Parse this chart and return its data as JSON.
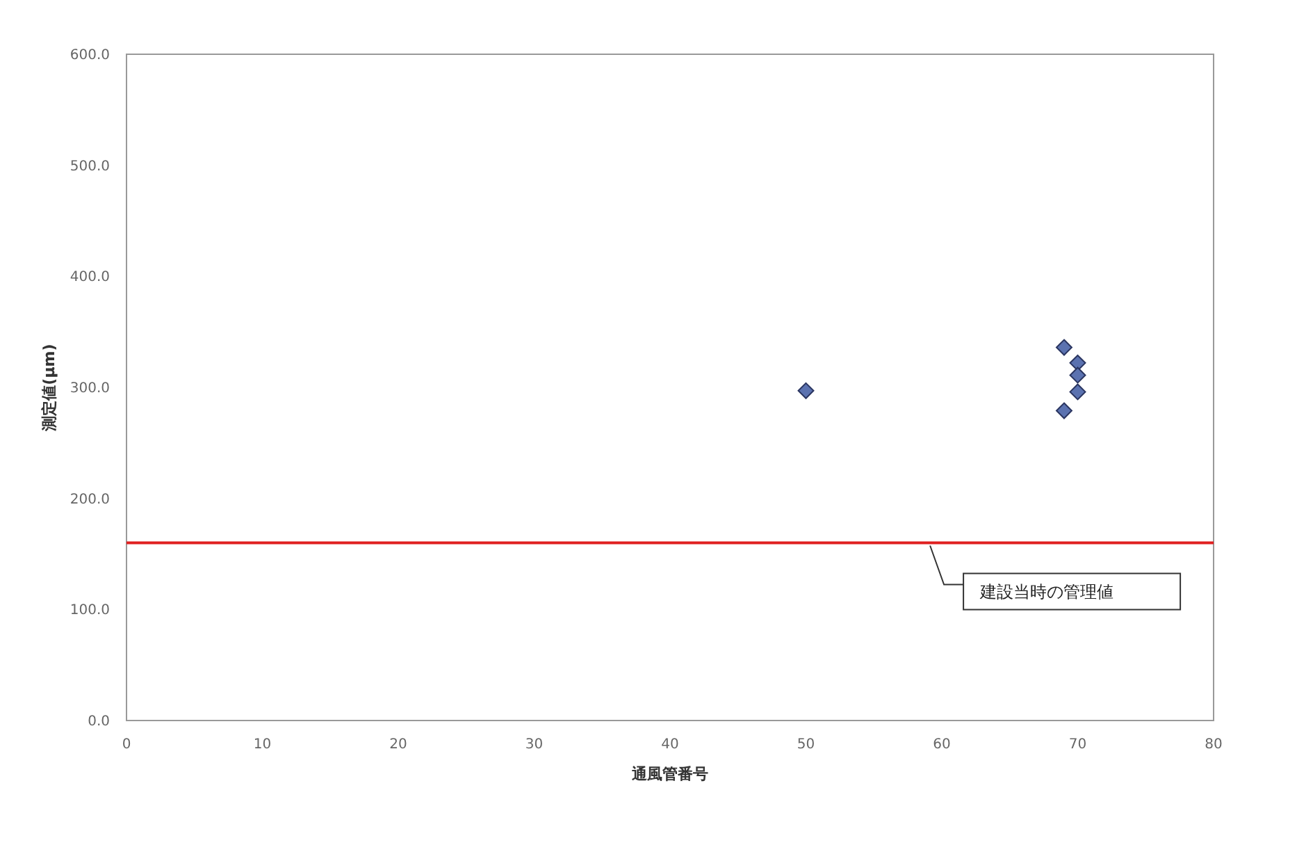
{
  "chart_data": {
    "type": "scatter",
    "xlabel": "通風管番号",
    "ylabel": "測定値(μm)",
    "x": [
      50,
      69,
      70,
      70,
      70,
      69
    ],
    "values": [
      297,
      336,
      322,
      311,
      296,
      279
    ],
    "color": "#5b72b0",
    "marker": "diamond",
    "xlim": [
      0,
      80
    ],
    "xticks": [
      0,
      10,
      20,
      30,
      40,
      50,
      60,
      70,
      80
    ],
    "ylim": [
      0,
      600
    ],
    "yticks": [
      {
        "value": 0,
        "label": "0.0"
      },
      {
        "value": 100,
        "label": "100.0"
      },
      {
        "value": 200,
        "label": "200.0"
      },
      {
        "value": 300,
        "label": "300.0"
      },
      {
        "value": 400,
        "label": "400.0"
      },
      {
        "value": 500,
        "label": "500.0"
      },
      {
        "value": 600,
        "label": "600.0"
      }
    ],
    "ref_lines": [
      {
        "axis": "y",
        "value": 160,
        "label": "建設当時の管理値",
        "color": "#e02020"
      }
    ],
    "grid": false
  }
}
